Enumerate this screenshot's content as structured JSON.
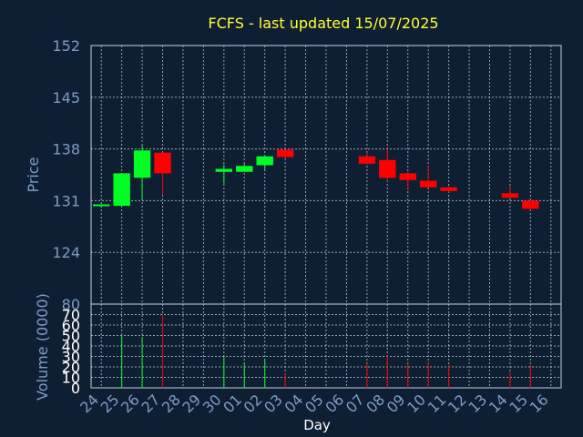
{
  "chart_data": {
    "type": "candlestick",
    "title": "FCFS - last updated 15/07/2025",
    "xlabel": "Day",
    "price_panel": {
      "ylabel": "Price",
      "ylim": [
        117,
        152
      ],
      "ticks": [
        124,
        131,
        138,
        145,
        152
      ],
      "grid": true
    },
    "volume_panel": {
      "ylabel": "Volume (0000)",
      "ylim": [
        0,
        80
      ],
      "ticks": [
        0,
        10,
        20,
        30,
        40,
        50,
        60,
        70,
        80
      ],
      "grid": true
    },
    "x_ticks": [
      "24",
      "25",
      "26",
      "27",
      "28",
      "29",
      "30",
      "01",
      "02",
      "03",
      "04",
      "05",
      "06",
      "07",
      "08",
      "09",
      "10",
      "11",
      "12",
      "13",
      "14",
      "15",
      "16"
    ],
    "candles": [
      {
        "day": "24",
        "open": 130.3,
        "high": 130.5,
        "low": 130.1,
        "close": 130.5,
        "volume": 0,
        "color": "up"
      },
      {
        "day": "25",
        "open": 130.3,
        "high": 134.7,
        "low": 130.3,
        "close": 134.7,
        "volume": 50,
        "color": "up"
      },
      {
        "day": "26",
        "open": 134.1,
        "high": 138.5,
        "low": 131.2,
        "close": 137.8,
        "volume": 48,
        "color": "up"
      },
      {
        "day": "27",
        "open": 137.5,
        "high": 137.5,
        "low": 131.8,
        "close": 134.7,
        "volume": 70,
        "color": "down"
      },
      {
        "day": "30",
        "open": 134.9,
        "high": 135.9,
        "low": 133.3,
        "close": 135.3,
        "volume": 30,
        "color": "up"
      },
      {
        "day": "01",
        "open": 134.9,
        "high": 136.0,
        "low": 134.9,
        "close": 135.7,
        "volume": 24,
        "color": "up"
      },
      {
        "day": "02",
        "open": 135.8,
        "high": 137.1,
        "low": 135.2,
        "close": 137.0,
        "volume": 27,
        "color": "up"
      },
      {
        "day": "03",
        "open": 137.9,
        "high": 138.0,
        "low": 136.7,
        "close": 136.9,
        "volume": 14,
        "color": "down"
      },
      {
        "day": "07",
        "open": 137.0,
        "high": 137.5,
        "low": 135.9,
        "close": 136.0,
        "volume": 23,
        "color": "down"
      },
      {
        "day": "08",
        "open": 136.5,
        "high": 138.0,
        "low": 133.6,
        "close": 134.1,
        "volume": 31,
        "color": "down"
      },
      {
        "day": "09",
        "open": 134.7,
        "high": 134.9,
        "low": 132.4,
        "close": 133.8,
        "volume": 23,
        "color": "down"
      },
      {
        "day": "10",
        "open": 133.7,
        "high": 135.7,
        "low": 132.8,
        "close": 132.8,
        "volume": 24,
        "color": "down"
      },
      {
        "day": "11",
        "open": 132.8,
        "high": 133.0,
        "low": 132.1,
        "close": 132.3,
        "volume": 22,
        "color": "down"
      },
      {
        "day": "14",
        "open": 132.0,
        "high": 133.0,
        "low": 131.3,
        "close": 131.4,
        "volume": 15,
        "color": "down"
      },
      {
        "day": "15",
        "open": 131.0,
        "high": 131.0,
        "low": 129.7,
        "close": 129.9,
        "volume": 22,
        "color": "down"
      }
    ],
    "colors": {
      "background": "#0f1f33",
      "up": "#00ff22",
      "down": "#ff0000",
      "title": "#ffff33",
      "axis_text": "#7f9bc4",
      "grid": "#c8d0dc"
    }
  }
}
